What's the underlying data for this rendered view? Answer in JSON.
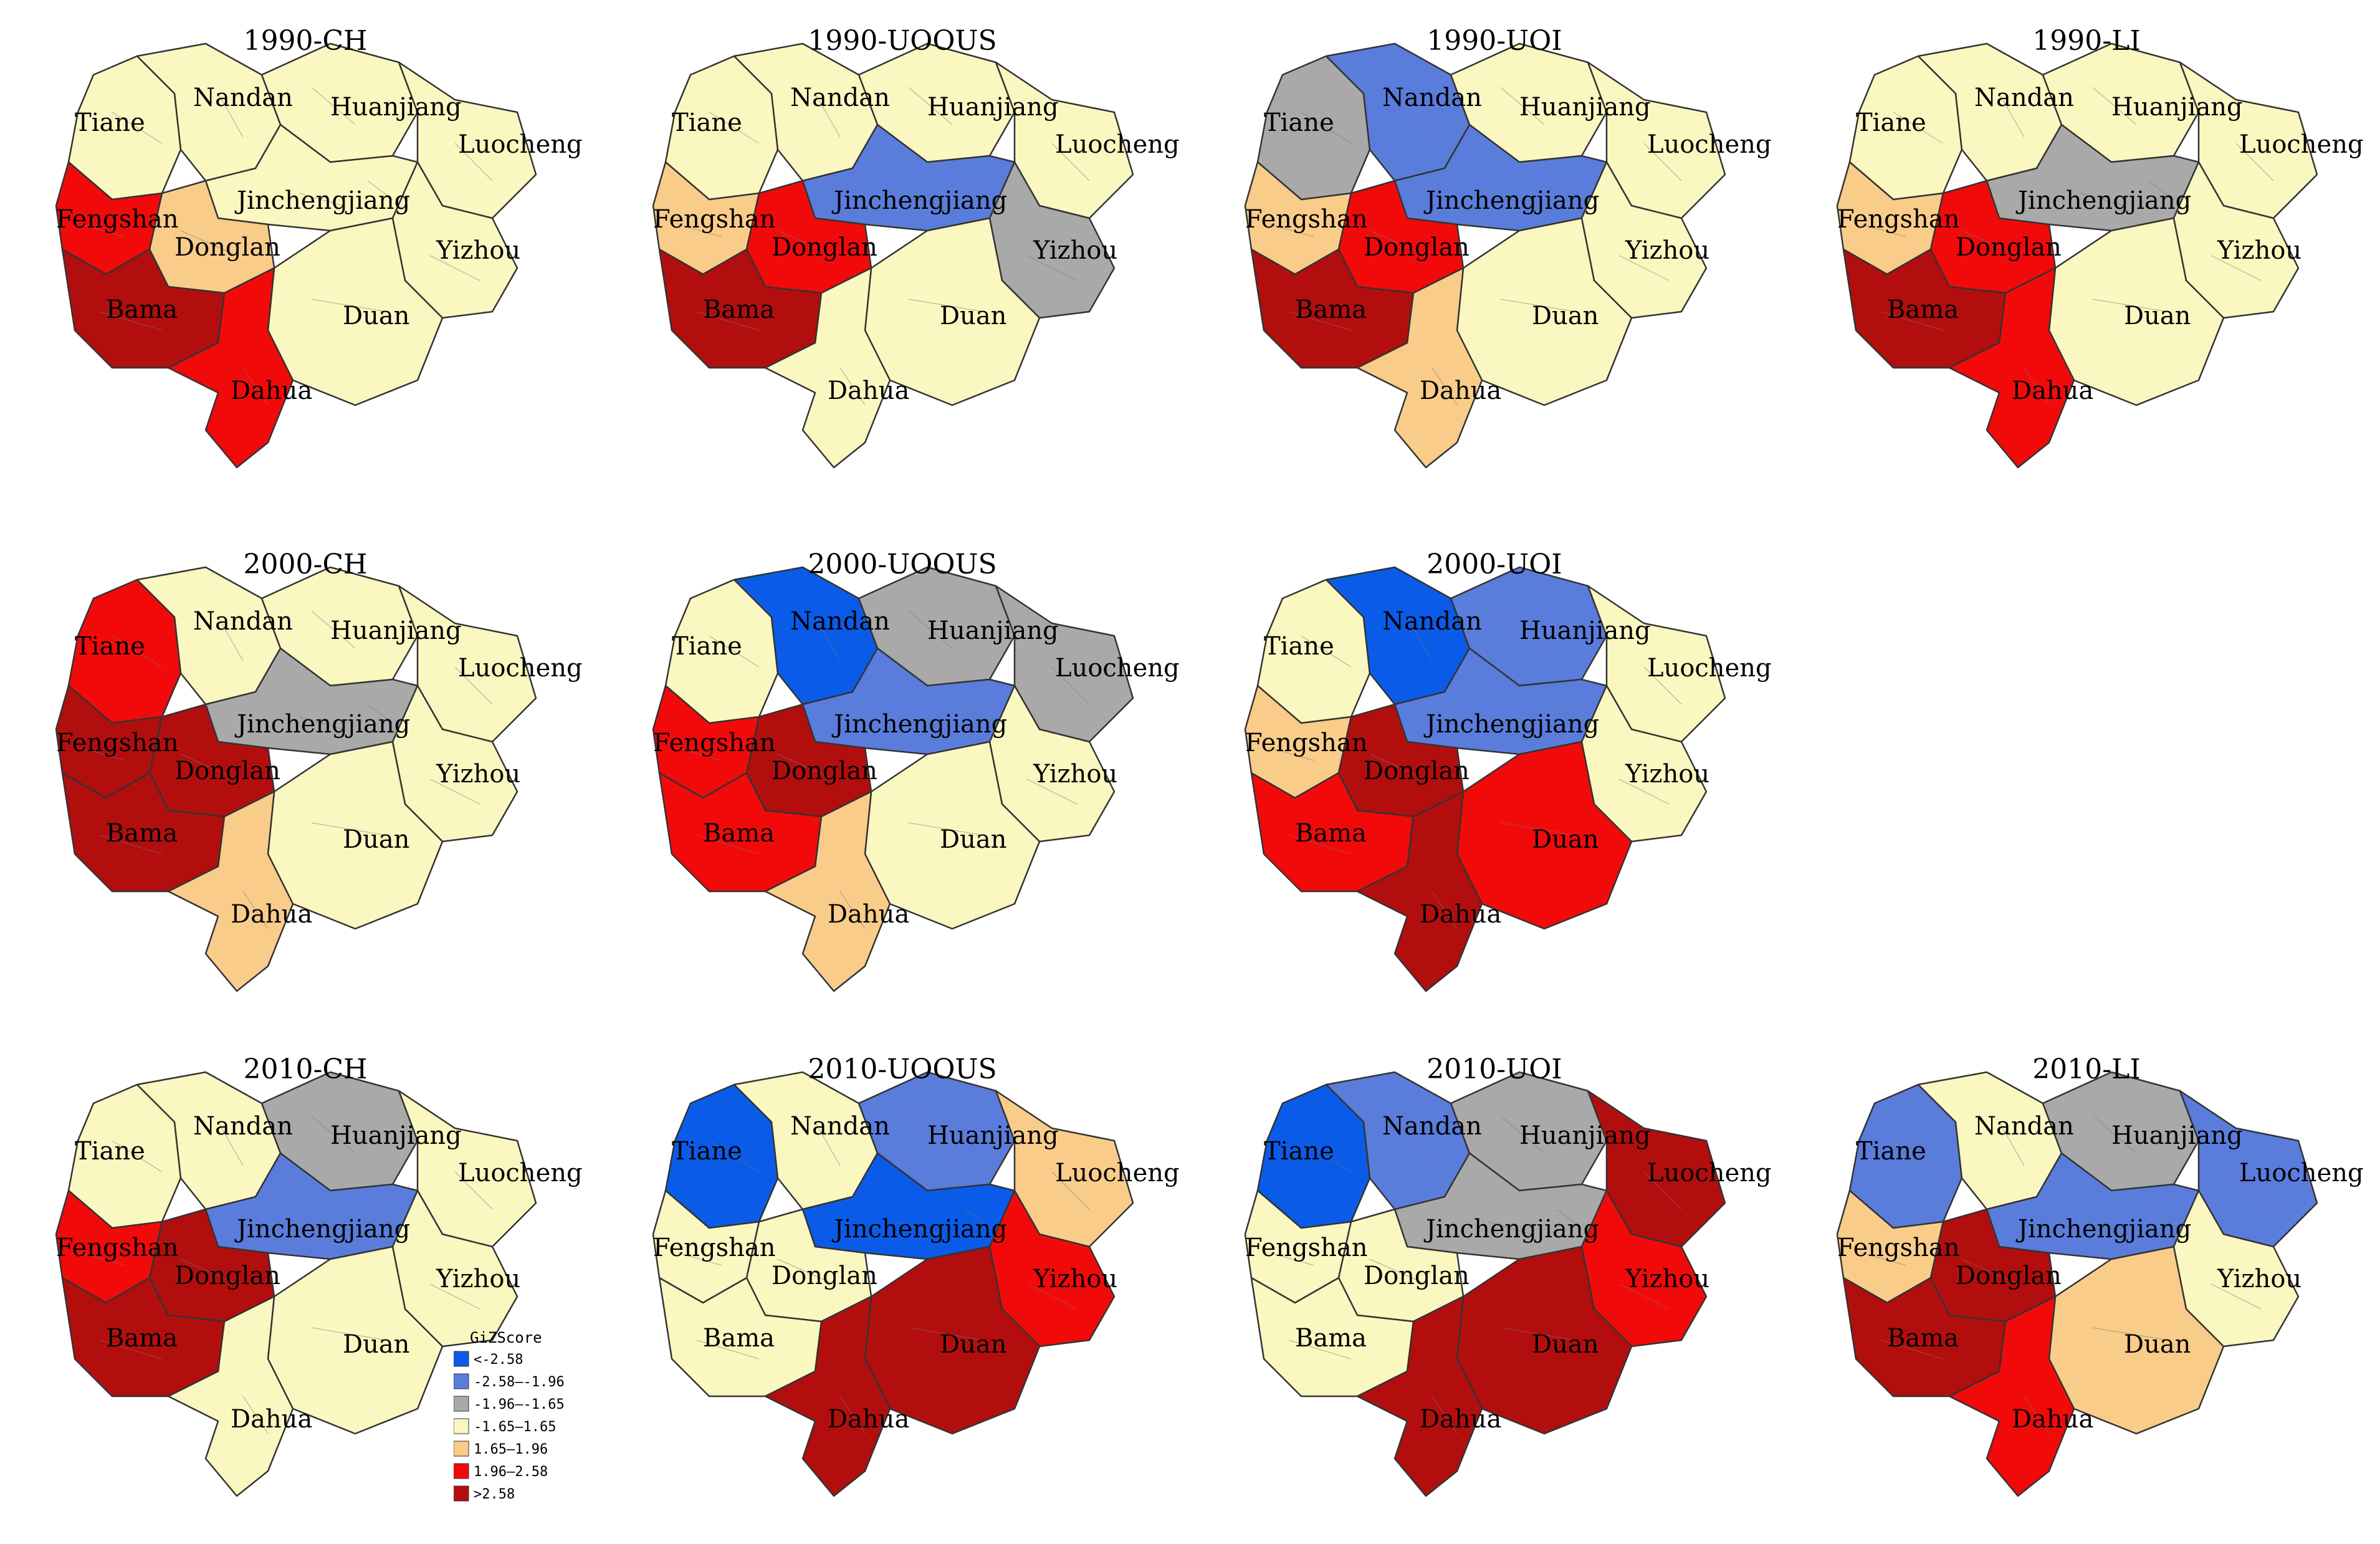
{
  "colors": {
    "c1": "#0a5ce8",
    "c2": "#5a7ddc",
    "c3": "#a9a9a9",
    "c4": "#fbf7c0",
    "c5": "#f9cc8a",
    "c6": "#f20a0a",
    "c7": "#b30e0e"
  },
  "legend": {
    "title": "GiZScore",
    "items": [
      {
        "key": "c1",
        "label": "<-2.58"
      },
      {
        "key": "c2",
        "label": "-2.58—-1.96"
      },
      {
        "key": "c3",
        "label": "-1.96—-1.65"
      },
      {
        "key": "c4",
        "label": "-1.65—1.65"
      },
      {
        "key": "c5",
        "label": "1.65—1.96"
      },
      {
        "key": "c6",
        "label": "1.96—2.58"
      },
      {
        "key": "c7",
        "label": ">2.58"
      }
    ]
  },
  "panels": [
    {
      "title": "1990-CH",
      "counties": [
        "Tiane",
        "Nandan",
        "Huanjiang",
        "Luocheng",
        "Jinchengjiang",
        "Fengshan",
        "Donglan",
        "Yizhou",
        "Bama",
        "Duan",
        "Dahua"
      ],
      "fills": {
        "Tiane": "c4",
        "Nandan": "c4",
        "Huanjiang": "c4",
        "Luocheng": "c4",
        "Jinchengjiang": "c4",
        "Fengshan": "c6",
        "Donglan": "c5",
        "Yizhou": "c4",
        "Bama": "c7",
        "Duan": "c4",
        "Dahua": "c6"
      }
    },
    {
      "title": "1990-UOOUS",
      "counties": [
        "Tiane",
        "Nandan",
        "Huanjiang",
        "Luocheng",
        "Jinchengjiang",
        "Fengshan",
        "Donglan",
        "Yizhou",
        "Bama",
        "Duan",
        "Dahua"
      ],
      "fills": {
        "Tiane": "c4",
        "Nandan": "c4",
        "Huanjiang": "c4",
        "Luocheng": "c4",
        "Jinchengjiang": "c2",
        "Fengshan": "c5",
        "Donglan": "c6",
        "Yizhou": "c3",
        "Bama": "c7",
        "Duan": "c4",
        "Dahua": "c4"
      }
    },
    {
      "title": "1990-UOI",
      "counties": [
        "Tiane",
        "Nandan",
        "Huanjiang",
        "Luocheng",
        "Jinchengjiang",
        "Fengshan",
        "Donglan",
        "Yizhou",
        "Bama",
        "Duan",
        "Dahua"
      ],
      "fills": {
        "Tiane": "c3",
        "Nandan": "c2",
        "Huanjiang": "c4",
        "Luocheng": "c4",
        "Jinchengjiang": "c2",
        "Fengshan": "c5",
        "Donglan": "c6",
        "Yizhou": "c4",
        "Bama": "c7",
        "Duan": "c4",
        "Dahua": "c5"
      }
    },
    {
      "title": "1990-LI",
      "counties": [
        "Tiane",
        "Nandan",
        "Huanjiang",
        "Luocheng",
        "Jinchengjiang",
        "Fengshan",
        "Donglan",
        "Yizhou",
        "Bama",
        "Duan",
        "Dahua"
      ],
      "fills": {
        "Tiane": "c4",
        "Nandan": "c4",
        "Huanjiang": "c4",
        "Luocheng": "c4",
        "Jinchengjiang": "c3",
        "Fengshan": "c5",
        "Donglan": "c6",
        "Yizhou": "c4",
        "Bama": "c7",
        "Duan": "c4",
        "Dahua": "c6"
      }
    },
    {
      "title": "2000-CH",
      "counties": [
        "Tiane",
        "Nandan",
        "Huanjiang",
        "Luocheng",
        "Jinchengjiang",
        "Fengshan",
        "Donglan",
        "Yizhou",
        "Bama",
        "Duan",
        "Dahua"
      ],
      "fills": {
        "Tiane": "c6",
        "Nandan": "c4",
        "Huanjiang": "c4",
        "Luocheng": "c4",
        "Jinchengjiang": "c3",
        "Fengshan": "c7",
        "Donglan": "c7",
        "Yizhou": "c4",
        "Bama": "c7",
        "Duan": "c4",
        "Dahua": "c5"
      }
    },
    {
      "title": "2000-UOOUS",
      "counties": [
        "Tiane",
        "Nandan",
        "Huanjiang",
        "Luocheng",
        "Jinchengjiang",
        "Fengshan",
        "Donglan",
        "Yizhou",
        "Bama",
        "Duan",
        "Dahua"
      ],
      "fills": {
        "Tiane": "c4",
        "Nandan": "c1",
        "Huanjiang": "c3",
        "Luocheng": "c3",
        "Jinchengjiang": "c2",
        "Fengshan": "c6",
        "Donglan": "c7",
        "Yizhou": "c4",
        "Bama": "c6",
        "Duan": "c4",
        "Dahua": "c5"
      }
    },
    {
      "title": "2000-UOI",
      "counties": [
        "Tiane",
        "Nandan",
        "Huanjiang",
        "Luocheng",
        "Jinchengjiang",
        "Fengshan",
        "Donglan",
        "Yizhou",
        "Bama",
        "Duan",
        "Dahua"
      ],
      "fills": {
        "Tiane": "c4",
        "Nandan": "c1",
        "Huanjiang": "c2",
        "Luocheng": "c4",
        "Jinchengjiang": "c2",
        "Fengshan": "c5",
        "Donglan": "c7",
        "Yizhou": "c4",
        "Bama": "c6",
        "Duan": "c6",
        "Dahua": "c7"
      }
    },
    {
      "title": "2010-CH",
      "counties": [
        "Tiane",
        "Nandan",
        "Huanjiang",
        "Luocheng",
        "Jinchengjiang",
        "Fengshan",
        "Donglan",
        "Yizhou",
        "Bama",
        "Duan",
        "Dahua"
      ],
      "fills": {
        "Tiane": "c4",
        "Nandan": "c4",
        "Huanjiang": "c3",
        "Luocheng": "c4",
        "Jinchengjiang": "c2",
        "Fengshan": "c6",
        "Donglan": "c7",
        "Yizhou": "c4",
        "Bama": "c7",
        "Duan": "c4",
        "Dahua": "c4"
      }
    },
    {
      "title": "2010-UOOUS",
      "counties": [
        "Tiane",
        "Nandan",
        "Huanjiang",
        "Luocheng",
        "Jinchengjiang",
        "Fengshan",
        "Donglan",
        "Yizhou",
        "Bama",
        "Duan",
        "Dahua"
      ],
      "fills": {
        "Tiane": "c1",
        "Nandan": "c4",
        "Huanjiang": "c2",
        "Luocheng": "c5",
        "Jinchengjiang": "c1",
        "Fengshan": "c4",
        "Donglan": "c4",
        "Yizhou": "c6",
        "Bama": "c4",
        "Duan": "c7",
        "Dahua": "c7"
      }
    },
    {
      "title": "2010-UOI",
      "counties": [
        "Tiane",
        "Nandan",
        "Huanjiang",
        "Luocheng",
        "Jinchengjiang",
        "Fengshan",
        "Donglan",
        "Yizhou",
        "Bama",
        "Duan",
        "Dahua"
      ],
      "fills": {
        "Tiane": "c1",
        "Nandan": "c2",
        "Huanjiang": "c3",
        "Luocheng": "c7",
        "Jinchengjiang": "c3",
        "Fengshan": "c4",
        "Donglan": "c4",
        "Yizhou": "c6",
        "Bama": "c4",
        "Duan": "c7",
        "Dahua": "c7"
      }
    },
    {
      "title": "2010-LI",
      "counties": [
        "Tiane",
        "Nandan",
        "Huanjiang",
        "Luocheng",
        "Jinchengjiang",
        "Fengshan",
        "Donglan",
        "Yizhou",
        "Bama",
        "Duan",
        "Dahua"
      ],
      "fills": {
        "Tiane": "c2",
        "Nandan": "c4",
        "Huanjiang": "c3",
        "Luocheng": "c2",
        "Jinchengjiang": "c2",
        "Fengshan": "c5",
        "Donglan": "c7",
        "Yizhou": "c4",
        "Bama": "c7",
        "Duan": "c5",
        "Dahua": "c6"
      }
    }
  ]
}
